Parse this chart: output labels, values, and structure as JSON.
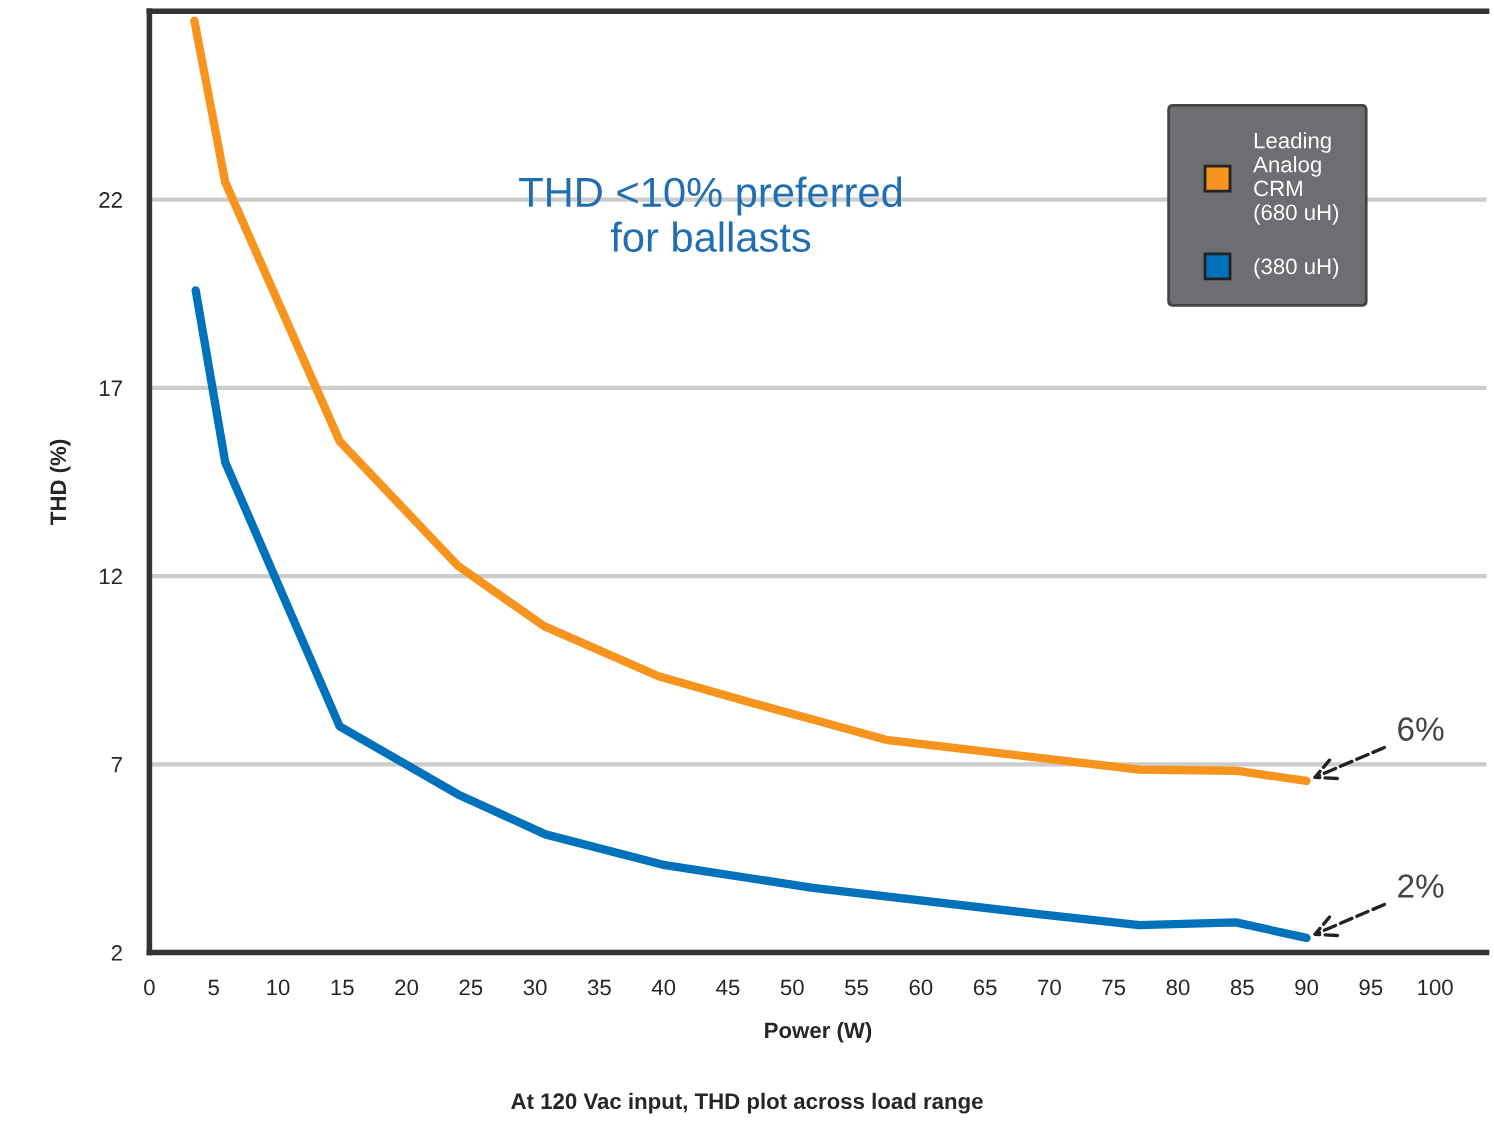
{
  "chart_data": {
    "type": "line",
    "xlabel": "Power (W)",
    "ylabel": "THD (%)",
    "xlim": [
      0,
      104
    ],
    "xticks": [
      0,
      5,
      10,
      15,
      20,
      25,
      30,
      35,
      40,
      45,
      50,
      55,
      60,
      65,
      70,
      75,
      80,
      85,
      90,
      95,
      100
    ],
    "ylim": [
      2,
      27
    ],
    "yticks": [
      2,
      7,
      12,
      17,
      22
    ],
    "grid": "y",
    "legend": "top right",
    "marker": "none",
    "line_style": "solid",
    "series": [
      {
        "name": "Leading\nAnalog\nCRM\n(680 uH)",
        "color": "#f7941d",
        "x": [
          3.5,
          5.9,
          14.8,
          24,
          30.7,
          39.6,
          46.9,
          51.6,
          57.3,
          77,
          84.5,
          90
        ],
        "values": [
          26.75,
          22.46,
          15.58,
          12.27,
          10.67,
          9.34,
          8.63,
          8.19,
          7.65,
          6.86,
          6.83,
          6.56
        ]
      },
      {
        "name": "(380 uH)",
        "color": "#0072bc",
        "x": [
          3.6,
          5.9,
          14.8,
          24,
          30.8,
          40.1,
          51.6,
          69.7,
          77,
          84.5,
          90
        ],
        "values": [
          19.59,
          15.02,
          8.01,
          6.2,
          5.14,
          4.32,
          3.72,
          3.0,
          2.73,
          2.8,
          2.39
        ]
      }
    ],
    "annotations": [
      "THD <10% preferred\nfor ballasts",
      {
        "text": "6%",
        "x": 90,
        "y": 6.56
      },
      {
        "text": "2%",
        "x": 90,
        "y": 2.39
      },
      "At 120 Vac input, THD plot across load range"
    ]
  }
}
